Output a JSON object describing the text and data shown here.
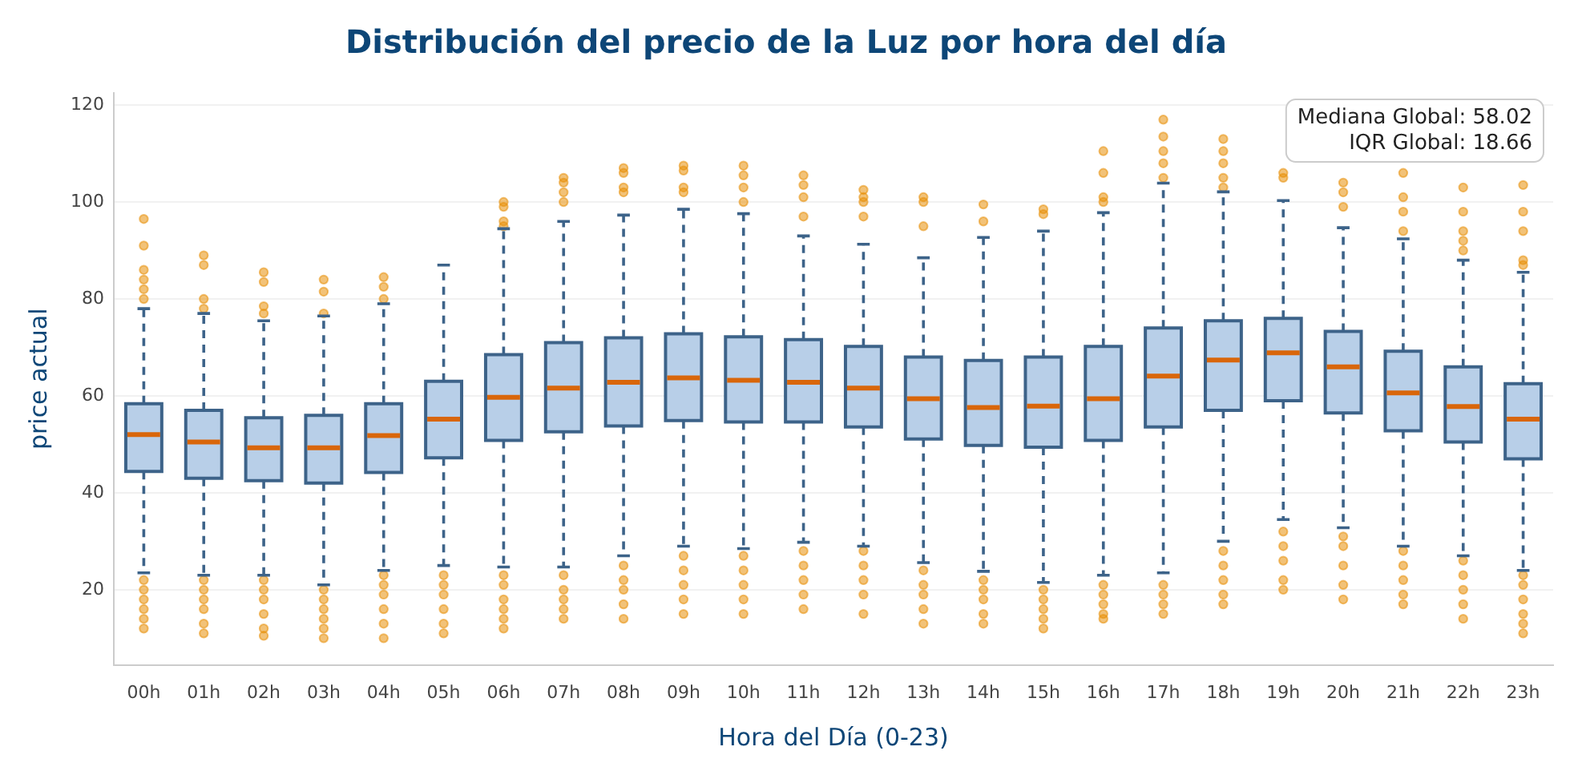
{
  "chart_data": {
    "type": "box",
    "title": "Distribución del precio de la Luz por hora del día",
    "xlabel": "Hora del Día (0-23)",
    "ylabel": "price actual",
    "annotations": [
      "Mediana Global: 58.02",
      "IQR Global: 18.66"
    ],
    "categories": [
      "00h",
      "01h",
      "02h",
      "03h",
      "04h",
      "05h",
      "06h",
      "07h",
      "08h",
      "09h",
      "10h",
      "11h",
      "12h",
      "13h",
      "14h",
      "15h",
      "16h",
      "17h",
      "18h",
      "19h",
      "20h",
      "21h",
      "22h",
      "23h"
    ],
    "color": "#b8cfe8",
    "ylim": [
      4.5,
      122.5
    ],
    "yticks": [
      20,
      40,
      60,
      80,
      100,
      120
    ],
    "grid": "y",
    "legend": false,
    "marker": "circle",
    "line_style": "dashed",
    "boxes": [
      {
        "low": 23.5,
        "q1": 44.4,
        "median": 52,
        "q3": 58.4,
        "high": 78,
        "outliers": [
          96.5,
          91,
          86,
          84,
          82,
          80,
          22,
          20,
          18,
          16,
          14,
          12
        ]
      },
      {
        "low": 23,
        "q1": 43,
        "median": 50.5,
        "q3": 57,
        "high": 77,
        "outliers": [
          89,
          87,
          80,
          78,
          22,
          20,
          18,
          16,
          13,
          11
        ]
      },
      {
        "low": 23,
        "q1": 42.5,
        "median": 49.3,
        "q3": 55.5,
        "high": 75.5,
        "outliers": [
          85.5,
          83.5,
          78.5,
          77,
          22,
          20,
          18,
          15,
          12,
          10.5
        ]
      },
      {
        "low": 21,
        "q1": 42,
        "median": 49.3,
        "q3": 56,
        "high": 76.5,
        "outliers": [
          84,
          81.5,
          77,
          20,
          18,
          16,
          14,
          12,
          10
        ]
      },
      {
        "low": 24,
        "q1": 44.2,
        "median": 51.8,
        "q3": 58.4,
        "high": 79,
        "outliers": [
          84.5,
          82.5,
          80,
          23,
          21,
          19,
          16,
          13,
          10
        ]
      },
      {
        "low": 25,
        "q1": 47.2,
        "median": 55.2,
        "q3": 63,
        "high": 87,
        "outliers": [
          23,
          21,
          19,
          16,
          13,
          11
        ]
      },
      {
        "low": 24.7,
        "q1": 50.8,
        "median": 59.7,
        "q3": 68.5,
        "high": 94.5,
        "outliers": [
          100,
          99,
          96,
          95,
          23,
          21,
          18,
          16,
          14,
          12
        ]
      },
      {
        "low": 24.7,
        "q1": 52.6,
        "median": 61.6,
        "q3": 71,
        "high": 96,
        "outliers": [
          105,
          104,
          102,
          100,
          23,
          20,
          18,
          16,
          14
        ]
      },
      {
        "low": 27,
        "q1": 53.8,
        "median": 62.8,
        "q3": 72,
        "high": 97.3,
        "outliers": [
          107,
          106,
          103,
          102,
          25,
          22,
          20,
          17,
          14
        ]
      },
      {
        "low": 29,
        "q1": 54.9,
        "median": 63.7,
        "q3": 72.8,
        "high": 98.5,
        "outliers": [
          107.5,
          106.5,
          103,
          102,
          27,
          24,
          21,
          18,
          15
        ]
      },
      {
        "low": 28.5,
        "q1": 54.6,
        "median": 63.2,
        "q3": 72.2,
        "high": 97.6,
        "outliers": [
          107.5,
          105.5,
          103,
          100,
          27,
          24,
          21,
          18,
          15
        ]
      },
      {
        "low": 29.8,
        "q1": 54.6,
        "median": 62.8,
        "q3": 71.6,
        "high": 93,
        "outliers": [
          105.5,
          103.5,
          101,
          97,
          28,
          25,
          22,
          19,
          16
        ]
      },
      {
        "low": 29,
        "q1": 53.6,
        "median": 61.6,
        "q3": 70.2,
        "high": 91.3,
        "outliers": [
          102.5,
          101,
          100,
          97,
          28,
          25,
          22,
          19,
          15
        ]
      },
      {
        "low": 25.6,
        "q1": 51.1,
        "median": 59.4,
        "q3": 68,
        "high": 88.5,
        "outliers": [
          101,
          100,
          95,
          24,
          21,
          19,
          16,
          13
        ]
      },
      {
        "low": 23.8,
        "q1": 49.8,
        "median": 57.6,
        "q3": 67.3,
        "high": 92.7,
        "outliers": [
          99.5,
          96,
          22,
          20,
          18,
          15,
          13
        ]
      },
      {
        "low": 21.5,
        "q1": 49.4,
        "median": 57.9,
        "q3": 68,
        "high": 94,
        "outliers": [
          98.5,
          97.5,
          20,
          18,
          16,
          14,
          12
        ]
      },
      {
        "low": 23,
        "q1": 50.8,
        "median": 59.4,
        "q3": 70.2,
        "high": 97.8,
        "outliers": [
          110.5,
          106,
          101,
          100,
          21,
          19,
          17,
          15,
          14
        ]
      },
      {
        "low": 23.5,
        "q1": 53.6,
        "median": 64.1,
        "q3": 74,
        "high": 103.9,
        "outliers": [
          117,
          113.5,
          110.5,
          108,
          105,
          21,
          19,
          17,
          15
        ]
      },
      {
        "low": 30,
        "q1": 57,
        "median": 67.4,
        "q3": 75.5,
        "high": 102.1,
        "outliers": [
          113,
          110.5,
          108,
          105,
          103,
          28,
          25,
          22,
          19,
          17
        ]
      },
      {
        "low": 34.5,
        "q1": 59,
        "median": 68.9,
        "q3": 76,
        "high": 100.3,
        "outliers": [
          106,
          105,
          32,
          29,
          26,
          22,
          20
        ]
      },
      {
        "low": 32.8,
        "q1": 56.5,
        "median": 66,
        "q3": 73.3,
        "high": 94.7,
        "outliers": [
          104,
          102,
          99,
          31,
          29,
          25,
          21,
          18
        ]
      },
      {
        "low": 29,
        "q1": 52.8,
        "median": 60.6,
        "q3": 69.2,
        "high": 92.4,
        "outliers": [
          106,
          101,
          98,
          94,
          28,
          25,
          22,
          19,
          17
        ]
      },
      {
        "low": 27,
        "q1": 50.5,
        "median": 57.8,
        "q3": 66,
        "high": 88,
        "outliers": [
          103,
          98,
          94,
          92,
          90,
          26,
          23,
          20,
          17,
          14
        ]
      },
      {
        "low": 24,
        "q1": 47,
        "median": 55.2,
        "q3": 62.5,
        "high": 85.5,
        "outliers": [
          103.5,
          98,
          94,
          88,
          87,
          23,
          21,
          18,
          15,
          13,
          11
        ]
      }
    ]
  }
}
